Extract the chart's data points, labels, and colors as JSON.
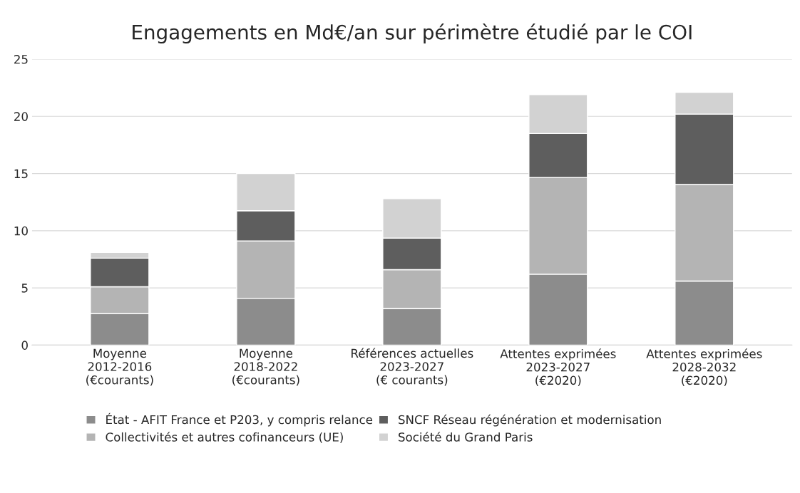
{
  "chart_data": {
    "type": "bar",
    "title": "Engagements en Md€/an sur périmètre étudié par le COI",
    "categories": [
      "Moyenne\n2012-2016\n(€courants)",
      "Moyenne\n2018-2022\n(€courants)",
      "Références actuelles\n2023-2027\n(€ courants)",
      "Attentes exprimées\n2023-2027\n(€2020)",
      "Attentes exprimées\n2028-2032\n(€2020)"
    ],
    "stacked": true,
    "series": [
      {
        "name": "État - AFIT France et P203, y compris relance",
        "color": "#8c8c8c",
        "values": [
          2.75,
          4.1,
          3.2,
          6.2,
          5.6
        ]
      },
      {
        "name": "Collectivités et autres cofinanceurs (UE)",
        "color": "#b4b4b4",
        "values": [
          2.35,
          5.0,
          3.4,
          8.45,
          8.45
        ]
      },
      {
        "name": "SNCF Réseau régénération et modernisation",
        "color": "#5e5e5e",
        "values": [
          2.5,
          2.65,
          2.75,
          3.85,
          6.15
        ]
      },
      {
        "name": "Société du Grand Paris",
        "color": "#d2d2d2",
        "values": [
          0.5,
          3.25,
          3.45,
          3.4,
          1.9
        ]
      }
    ],
    "ylim": [
      0,
      25
    ],
    "yticks": [
      0,
      5,
      10,
      15,
      20,
      25
    ],
    "grid": "y",
    "legend": "bottom"
  }
}
